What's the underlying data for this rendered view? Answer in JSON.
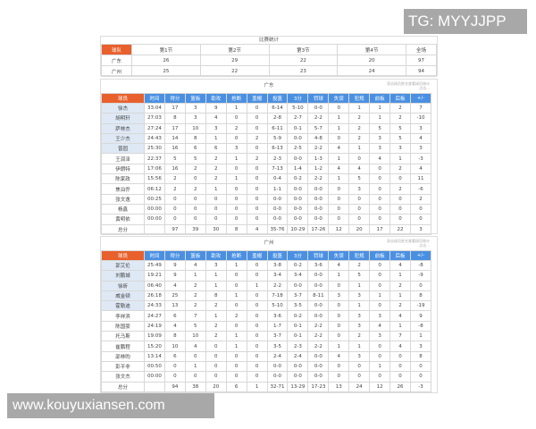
{
  "summary": {
    "title": "比赛统计",
    "headers": [
      "球队",
      "第1节",
      "第2节",
      "第3节",
      "第4节",
      "全场"
    ],
    "rows": [
      [
        "广东",
        "26",
        "29",
        "22",
        "20",
        "97"
      ],
      [
        "广州",
        "25",
        "22",
        "23",
        "24",
        "94"
      ]
    ]
  },
  "headers": [
    "球员",
    "时间",
    "得分",
    "篮板",
    "助攻",
    "抢断",
    "盖帽",
    "投篮",
    "3分",
    "罚球",
    "失误",
    "犯规",
    "前板",
    "后板",
    "+/-"
  ],
  "note": [
    "双击球员姓名查看球员统计",
    "点击..."
  ],
  "teams": [
    {
      "name": "广东",
      "rows": [
        [
          "徐杰",
          "33:04",
          "17",
          "3",
          "9",
          "1",
          "0",
          "6-14",
          "5-10",
          "0-0",
          "0",
          "1",
          "1",
          "2",
          "7"
        ],
        [
          "胡明轩",
          "27:03",
          "8",
          "3",
          "4",
          "0",
          "0",
          "2-8",
          "2-7",
          "2-2",
          "1",
          "2",
          "1",
          "2",
          "-10"
        ],
        [
          "萨林杰",
          "27:24",
          "17",
          "10",
          "3",
          "2",
          "0",
          "6-11",
          "0-1",
          "5-7",
          "1",
          "2",
          "5",
          "5",
          "3"
        ],
        [
          "王少杰",
          "24:43",
          "14",
          "8",
          "1",
          "0",
          "2",
          "5-9",
          "0-0",
          "4-8",
          "0",
          "2",
          "3",
          "5",
          "4"
        ],
        [
          "曾园",
          "25:30",
          "16",
          "6",
          "6",
          "3",
          "0",
          "6-13",
          "2-5",
          "2-2",
          "4",
          "1",
          "3",
          "3",
          "3"
        ],
        [
          "王润泽",
          "22:37",
          "5",
          "5",
          "2",
          "1",
          "2",
          "2-3",
          "0-0",
          "1-3",
          "1",
          "0",
          "4",
          "1",
          "-3"
        ],
        [
          "伊朗特",
          "17:06",
          "16",
          "2",
          "2",
          "0",
          "0",
          "7-13",
          "1-4",
          "1-2",
          "4",
          "4",
          "0",
          "2",
          "4"
        ],
        [
          "陈家政",
          "15:56",
          "2",
          "0",
          "2",
          "1",
          "0",
          "0-4",
          "0-2",
          "2-2",
          "1",
          "5",
          "0",
          "0",
          "11"
        ],
        [
          "焦泊乔",
          "06:12",
          "2",
          "2",
          "1",
          "0",
          "0",
          "1-1",
          "0-0",
          "0-0",
          "0",
          "3",
          "0",
          "2",
          "-6"
        ],
        [
          "张文逸",
          "00:25",
          "0",
          "0",
          "0",
          "0",
          "0",
          "0-0",
          "0-0",
          "0-0",
          "0",
          "0",
          "0",
          "0",
          "2"
        ],
        [
          "杨鑫",
          "00:00",
          "0",
          "0",
          "0",
          "0",
          "0",
          "0-0",
          "0-0",
          "0-0",
          "0",
          "0",
          "0",
          "0",
          "0"
        ],
        [
          "黄明依",
          "00:00",
          "0",
          "0",
          "0",
          "0",
          "0",
          "0-0",
          "0-0",
          "0-0",
          "0",
          "0",
          "0",
          "0",
          "0"
        ],
        [
          "总分",
          "",
          "97",
          "39",
          "30",
          "8",
          "4",
          "35-76",
          "10-29",
          "17-26",
          "12",
          "20",
          "17",
          "22",
          "3"
        ]
      ]
    },
    {
      "name": "广州",
      "rows": [
        [
          "郭艾伦",
          "25:49",
          "9",
          "4",
          "3",
          "1",
          "0",
          "3-8",
          "0-2",
          "3-6",
          "4",
          "2",
          "0",
          "4",
          "-8"
        ],
        [
          "刘鹏城",
          "19:21",
          "9",
          "1",
          "1",
          "0",
          "0",
          "3-4",
          "3-4",
          "0-0",
          "1",
          "5",
          "0",
          "1",
          "-9"
        ],
        [
          "徐昕",
          "06:40",
          "4",
          "2",
          "1",
          "0",
          "1",
          "2-2",
          "0-0",
          "0-0",
          "0",
          "1",
          "0",
          "2",
          "0"
        ],
        [
          "威金顿",
          "26:18",
          "25",
          "2",
          "8",
          "1",
          "0",
          "7-18",
          "3-7",
          "8-11",
          "3",
          "3",
          "1",
          "1",
          "8"
        ],
        [
          "霍勒迪",
          "24:33",
          "13",
          "2",
          "2",
          "0",
          "0",
          "5-10",
          "3-5",
          "0-0",
          "0",
          "1",
          "0",
          "2",
          "-19"
        ],
        [
          "李祥滨",
          "24:27",
          "6",
          "7",
          "1",
          "2",
          "0",
          "3-6",
          "0-2",
          "0-0",
          "0",
          "3",
          "3",
          "4",
          "9"
        ],
        [
          "陈国豪",
          "24:19",
          "4",
          "5",
          "2",
          "0",
          "0",
          "1-7",
          "0-1",
          "2-2",
          "0",
          "3",
          "4",
          "1",
          "-8"
        ],
        [
          "托马斯",
          "19:09",
          "8",
          "10",
          "2",
          "1",
          "0",
          "3-7",
          "0-1",
          "2-2",
          "0",
          "2",
          "3",
          "7",
          "1"
        ],
        [
          "崔鹏程",
          "15:20",
          "10",
          "4",
          "0",
          "1",
          "0",
          "3-5",
          "2-3",
          "2-2",
          "1",
          "1",
          "0",
          "4",
          "3"
        ],
        [
          "邵林昀",
          "13:14",
          "6",
          "0",
          "0",
          "0",
          "0",
          "2-4",
          "2-4",
          "0-0",
          "4",
          "3",
          "0",
          "0",
          "8"
        ],
        [
          "彭平非",
          "00:50",
          "0",
          "1",
          "0",
          "0",
          "0",
          "0-0",
          "0-0",
          "0-0",
          "0",
          "0",
          "1",
          "0",
          "0"
        ],
        [
          "张文杰",
          "00:00",
          "0",
          "0",
          "0",
          "0",
          "0",
          "0-0",
          "0-0",
          "0-0",
          "0",
          "0",
          "0",
          "0",
          "0"
        ],
        [
          "总分",
          "",
          "94",
          "38",
          "20",
          "6",
          "1",
          "32-71",
          "13-29",
          "17-23",
          "13",
          "24",
          "12",
          "26",
          "-3"
        ]
      ]
    }
  ],
  "overlay_top": "TG: MYYJJPP",
  "overlay_bottom": "www.kouyuxiansen.com",
  "colors": {
    "team_header": "#e8602c",
    "col_header": "#4a90e2",
    "starter_bg": "#dfe9f5"
  }
}
